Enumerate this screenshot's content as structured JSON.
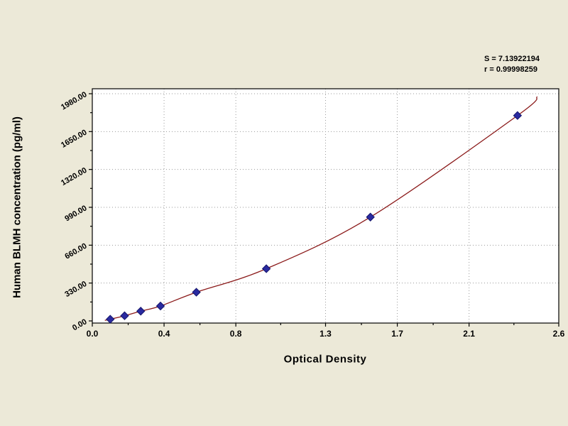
{
  "chart_data": {
    "type": "scatter",
    "title": "",
    "xlabel": "Optical Density",
    "ylabel": "Human BLMH concentration (pg/ml)",
    "x_ticks": [
      0.0,
      0.4,
      0.8,
      1.3,
      1.7,
      2.1,
      2.6
    ],
    "x_tick_labels": [
      "0.0",
      "0.4",
      "0.8",
      "1.3",
      "1.7",
      "2.1",
      "2.6"
    ],
    "y_ticks": [
      0,
      330,
      660,
      990,
      1320,
      1650,
      1980
    ],
    "y_tick_labels": [
      "0.00",
      "330.00",
      "660.00",
      "990.00",
      "1320.00",
      "1650.00",
      "1980.00"
    ],
    "xlim": [
      0,
      2.6
    ],
    "ylim": [
      0,
      1980
    ],
    "grid": true,
    "legend": "none",
    "annotations": {
      "s": "S = 7.13922194",
      "r": "r = 0.99998259"
    },
    "colors": {
      "background": "#ece9d8",
      "plot_background": "#ffffff",
      "curve": "#8b1a1a",
      "marker": "#2a2aa0",
      "marker_edge": "#15156b",
      "grid": "#9a9a9a",
      "axis": "#000000"
    },
    "series": [
      {
        "name": "standard-points",
        "type": "scatter",
        "marker": "diamond",
        "points": [
          [
            0.1,
            15
          ],
          [
            0.18,
            45
          ],
          [
            0.27,
            85
          ],
          [
            0.38,
            130
          ],
          [
            0.58,
            250
          ],
          [
            0.97,
            455
          ],
          [
            1.55,
            905
          ],
          [
            2.37,
            1790
          ]
        ]
      },
      {
        "name": "fitted-curve",
        "type": "line",
        "points": [
          [
            0.07,
            5
          ],
          [
            0.1,
            15
          ],
          [
            0.18,
            45
          ],
          [
            0.27,
            85
          ],
          [
            0.38,
            130
          ],
          [
            0.58,
            250
          ],
          [
            0.97,
            455
          ],
          [
            1.55,
            905
          ],
          [
            2.37,
            1790
          ],
          [
            2.48,
            1955
          ]
        ]
      }
    ]
  }
}
